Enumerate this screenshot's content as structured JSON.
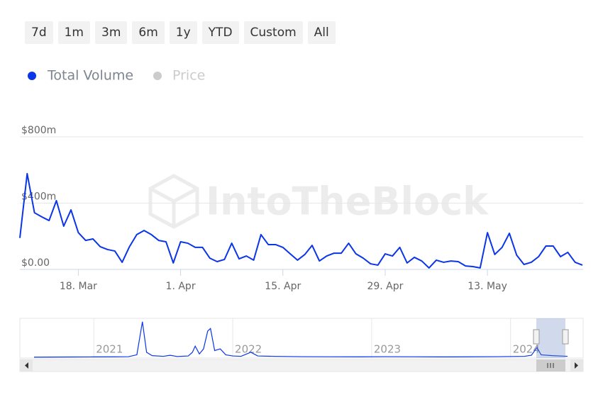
{
  "range_buttons": [
    "7d",
    "1m",
    "3m",
    "6m",
    "1y",
    "YTD",
    "Custom",
    "All"
  ],
  "watermark": "IntoTheBlock",
  "chart_data": [
    {
      "type": "line",
      "categories": [
        null,
        null,
        null,
        null,
        null,
        null,
        null,
        null,
        "18. Mar",
        null,
        null,
        null,
        null,
        null,
        null,
        null,
        null,
        null,
        null,
        null,
        null,
        null,
        "1. Apr",
        null,
        null,
        null,
        null,
        null,
        null,
        null,
        null,
        null,
        null,
        null,
        null,
        null,
        "15. Apr",
        null,
        null,
        null,
        null,
        null,
        null,
        null,
        null,
        null,
        null,
        null,
        null,
        null,
        "29. Apr",
        null,
        null,
        null,
        null,
        null,
        null,
        null,
        null,
        null,
        null,
        null,
        null,
        null,
        "13. May",
        null,
        null,
        null,
        null,
        null,
        null,
        null,
        null,
        null,
        null,
        null,
        null,
        null
      ],
      "series": [
        {
          "name": "Total Volume",
          "color": "#0a35e8",
          "values": [
            190000000,
            578000000,
            342000000,
            317000000,
            295000000,
            415000000,
            261000000,
            359000000,
            222000000,
            175000000,
            184000000,
            137000000,
            120000000,
            111000000,
            43000000,
            137000000,
            210000000,
            235000000,
            210000000,
            175000000,
            167000000,
            39000000,
            167000000,
            158000000,
            133000000,
            133000000,
            68000000,
            47000000,
            60000000,
            158000000,
            64000000,
            81000000,
            56000000,
            210000000,
            150000000,
            150000000,
            133000000,
            94000000,
            56000000,
            90000000,
            145000000,
            51000000,
            81000000,
            98000000,
            98000000,
            158000000,
            94000000,
            68000000,
            34000000,
            26000000,
            94000000,
            81000000,
            133000000,
            39000000,
            73000000,
            51000000,
            9000000,
            56000000,
            43000000,
            51000000,
            47000000,
            21000000,
            17000000,
            9000000,
            222000000,
            90000000,
            133000000,
            218000000,
            86000000,
            30000000,
            43000000,
            77000000,
            141000000,
            141000000,
            77000000,
            103000000,
            43000000,
            26000000
          ]
        }
      ],
      "hidden_series": [
        {
          "name": "Price",
          "color": "#cccccc"
        }
      ],
      "ylim": [
        0,
        800000000
      ],
      "yticks": [
        {
          "value": 0,
          "label": "$0.00"
        },
        {
          "value": 400000000,
          "label": "$400m"
        },
        {
          "value": 800000000,
          "label": "$800m"
        }
      ],
      "grid": true
    },
    {
      "type": "line",
      "color": "#0a35e8",
      "x": [
        2020.57,
        2020.7,
        2020.85,
        2021.0,
        2021.15,
        2021.25,
        2021.31,
        2021.35,
        2021.38,
        2021.42,
        2021.5,
        2021.55,
        2021.6,
        2021.68,
        2021.71,
        2021.73,
        2021.76,
        2021.79,
        2021.82,
        2021.84,
        2021.87,
        2021.91,
        2021.95,
        2022.0,
        2022.06,
        2022.13,
        2022.18,
        2022.3,
        2022.5,
        2022.7,
        2022.9,
        2023.1,
        2023.3,
        2023.5,
        2023.7,
        2023.9,
        2024.1,
        2024.15,
        2024.19,
        2024.22,
        2024.3,
        2024.41
      ],
      "values": [
        10000000,
        15000000,
        20000000,
        25000000,
        30000000,
        40000000,
        150000000,
        2100000000,
        300000000,
        100000000,
        60000000,
        120000000,
        50000000,
        80000000,
        300000000,
        660000000,
        200000000,
        500000000,
        1550000000,
        1700000000,
        400000000,
        500000000,
        150000000,
        80000000,
        60000000,
        300000000,
        80000000,
        60000000,
        40000000,
        35000000,
        30000000,
        40000000,
        35000000,
        25000000,
        30000000,
        40000000,
        60000000,
        120000000,
        578000000,
        150000000,
        100000000,
        60000000
      ],
      "xlim": [
        2020.57,
        2024.41
      ],
      "xticks": [
        2021,
        2022,
        2023,
        2024
      ],
      "ylim": [
        0,
        2300000000
      ]
    }
  ]
}
